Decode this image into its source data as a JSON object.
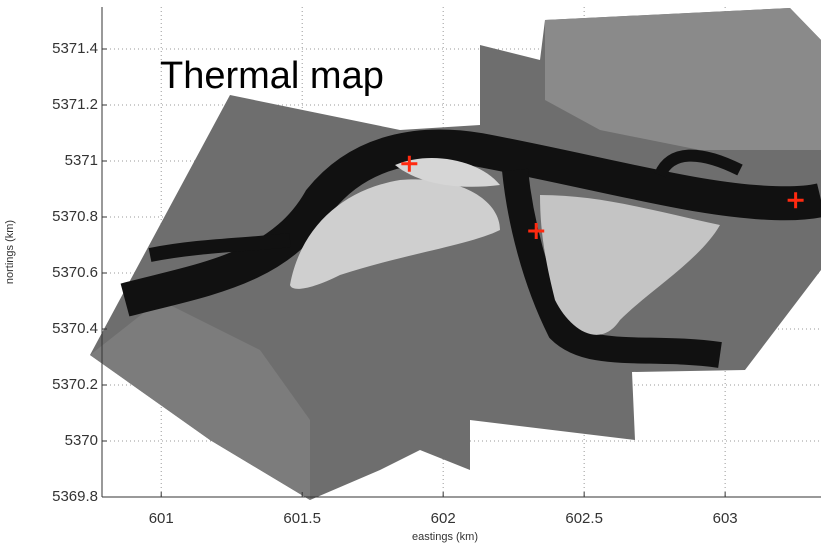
{
  "chart_data": {
    "type": "scatter",
    "title": "Thermal map",
    "x_label": "eastings (km)",
    "y_label": "nortings (km)",
    "series": [
      {
        "color": "#ff2a10",
        "x": [
          601.88,
          602.33,
          603.25
        ],
        "values": [
          5370.99,
          5370.75,
          5370.86
        ]
      }
    ],
    "xlim": [
      600.79,
      603.34
    ],
    "ylim": [
      5369.8,
      5371.55
    ],
    "xticks": [
      601,
      601.5,
      602,
      602.5,
      603
    ],
    "yticks": [
      5369.8,
      5370,
      5370.2,
      5370.4,
      5370.6,
      5370.8,
      5371,
      5371.2,
      5371.4
    ],
    "grid": true
  }
}
